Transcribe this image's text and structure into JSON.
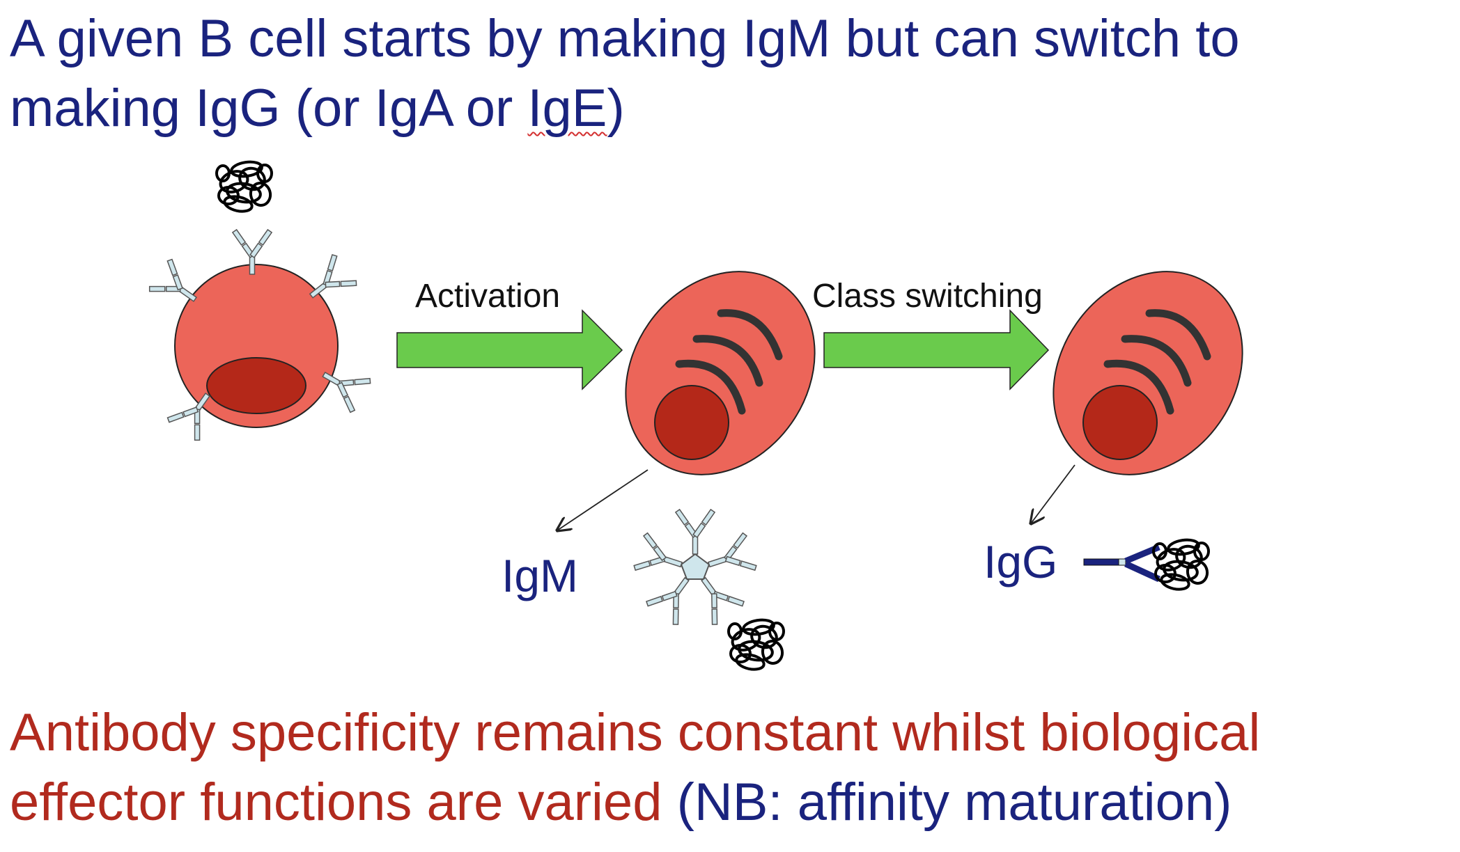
{
  "title": {
    "line1": "A given B cell starts by making IgM but can switch to",
    "line2_start": "making IgG (or IgA or ",
    "line2_underlined": "IgE",
    "line2_end": ")"
  },
  "diagram": {
    "step1_label": "Activation",
    "step2_label": "Class switching",
    "igm_label": "IgM",
    "igg_label": "IgG"
  },
  "footer": {
    "red_line1": "Antibody specificity remains constant whilst biological",
    "red_line2": "effector functions are varied ",
    "blue_part": "(NB: affinity maturation)"
  },
  "colors": {
    "title_blue": "#1a237e",
    "footer_red": "#b12a1e",
    "cell_fill": "#ec6559",
    "nucleus_fill": "#b42819",
    "arrow_green": "#6acb4c",
    "antibody_fill": "#cfe6ec",
    "igg_arm": "#1a237e"
  }
}
